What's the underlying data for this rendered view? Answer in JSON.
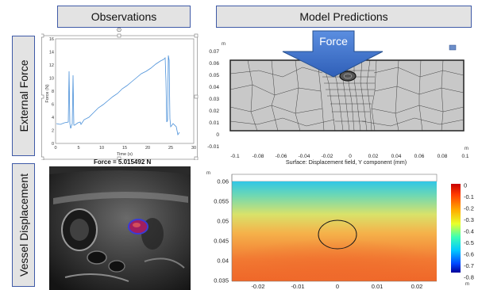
{
  "headers": {
    "observations": "Observations",
    "model_predictions": "Model Predictions"
  },
  "side_labels": {
    "external_force": "External Force",
    "vessel_displacement": "Vessel Displacement"
  },
  "force_arrow_label": "Force",
  "force_plot": {
    "xlabel": "Time (s)",
    "ylabel": "Force (N)",
    "x_ticks": [
      "0",
      "5",
      "10",
      "15",
      "20",
      "25",
      "30"
    ],
    "y_ticks": [
      "0",
      "2",
      "4",
      "6",
      "8",
      "10",
      "12",
      "14",
      "16"
    ],
    "line_color": "#4a90d9"
  },
  "ultrasound": {
    "caption": "Force = 5.015492 N",
    "marker_color": "#d23a8a"
  },
  "mesh_plot": {
    "unit_label": "m",
    "unit_label_x": "m",
    "y_ticks": [
      "0.07",
      "0.06",
      "0.05",
      "0.04",
      "0.03",
      "0.02",
      "0.01",
      "0",
      "-0.01"
    ],
    "x_ticks": [
      "-0.1",
      "-0.08",
      "-0.06",
      "-0.04",
      "-0.02",
      "0",
      "0.02",
      "0.04",
      "0.06",
      "0.08",
      "0.1"
    ],
    "mesh_fill": "#c8c8c8"
  },
  "field_plot": {
    "title": "Surface: Displacement field, Y component (mm)",
    "unit_label": "m",
    "unit_label_x": "m",
    "y_ticks": [
      "0.06",
      "0.055",
      "0.05",
      "0.045",
      "0.04",
      "0.035"
    ],
    "x_ticks": [
      "-0.02",
      "-0.01",
      "0",
      "0.01",
      "0.02"
    ],
    "colorbar_ticks": [
      "0",
      "-0.1",
      "-0.2",
      "-0.3",
      "-0.4",
      "-0.5",
      "-0.6",
      "-0.7",
      "-0.8"
    ]
  }
}
